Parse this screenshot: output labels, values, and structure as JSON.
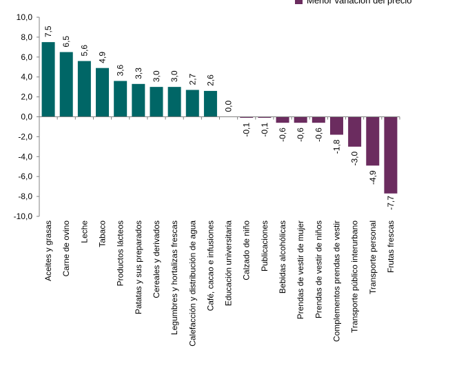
{
  "chart_data": {
    "type": "bar",
    "categories": [
      "Aceites y grasas",
      "Carne de ovino",
      "Leche",
      "Tabaco",
      "Productos lácteos",
      "Patatas y sus preparados",
      "Cereales y derivados",
      "Legumbres y hortalizas frescas",
      "Calefacción y distribución de agua",
      "Café, cacao e infusiones",
      "Educación universitaria",
      "Calzado de niño",
      "Publicaciones",
      "Bebidas alcohólicas",
      "Prendas de vestir de mujer",
      "Prendas de vestir de niños",
      "Complementos prendas de vestir",
      "Transporte público interurbano",
      "Transporte personal",
      "Frutas frescas"
    ],
    "values": [
      7.5,
      6.5,
      5.6,
      4.9,
      3.6,
      3.3,
      3.0,
      3.0,
      2.7,
      2.6,
      0.0,
      -0.1,
      -0.1,
      -0.6,
      -0.6,
      -0.6,
      -1.8,
      -3.0,
      -4.9,
      -7.7
    ],
    "data_labels": [
      "7,5",
      "6,5",
      "5,6",
      "4,9",
      "3,6",
      "3,3",
      "3,0",
      "3,0",
      "2,7",
      "2,6",
      "0,0",
      "-0,1",
      "-0,1",
      "-0,6",
      "-0,6",
      "-0,6",
      "-1,8",
      "-3,0",
      "-4,9",
      "-7,7"
    ],
    "ylim": [
      -10,
      10
    ],
    "yticks": [
      10,
      8,
      6,
      4,
      2,
      0,
      -2,
      -4,
      -6,
      -8,
      -10
    ],
    "ytick_labels": [
      "10,0",
      "8,0",
      "6,0",
      "4,0",
      "2,0",
      "0,0",
      "-2,0",
      "-4,0",
      "-6,0",
      "-8,0",
      "-10,0"
    ],
    "grid": false,
    "legend": {
      "position": "top-right",
      "entries": [
        {
          "label": "Menor variación del precio",
          "color": "#6b2c5f"
        }
      ]
    },
    "colors": {
      "positive": "#006666",
      "negative": "#6b2c5f"
    }
  }
}
